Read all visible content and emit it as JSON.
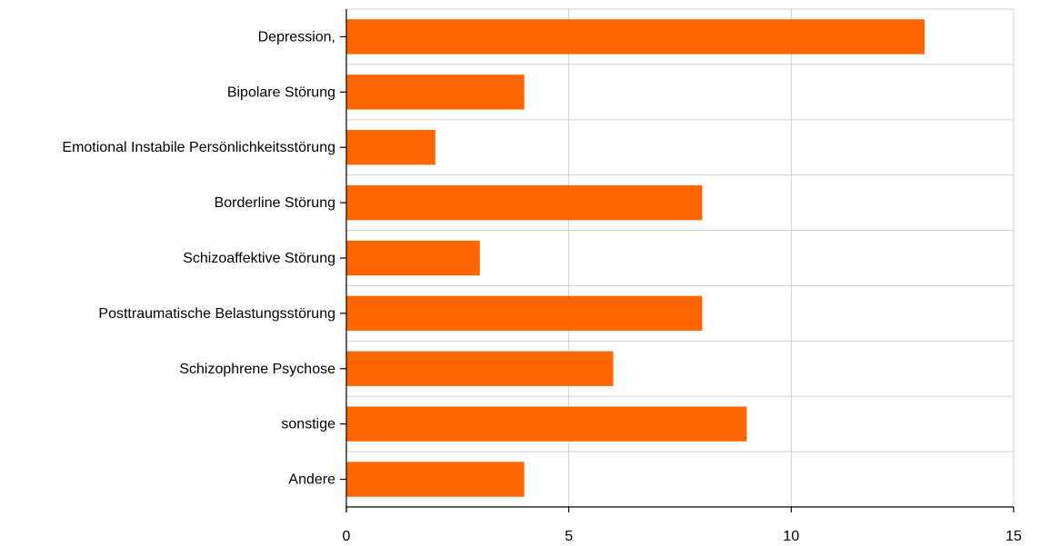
{
  "chart_data": {
    "type": "bar",
    "orientation": "horizontal",
    "categories": [
      "Depression,",
      "Bipolare Störung",
      "Emotional Instabile Persönlichkeitsstörung",
      "Borderline Störung",
      "Schizoaffektive Störung",
      "Posttraumatische Belastungsstörung",
      "Schizophrene Psychose",
      "sonstige",
      "Andere"
    ],
    "values": [
      13,
      4,
      2,
      8,
      3,
      8,
      6,
      9,
      4
    ],
    "xlim": [
      0,
      15
    ],
    "xticks": [
      "0",
      "5",
      "10",
      "15"
    ],
    "grid": true,
    "bar_color": "#ff6600",
    "grid_color": "#d0d0d0",
    "title": "",
    "xlabel": "",
    "ylabel": ""
  }
}
